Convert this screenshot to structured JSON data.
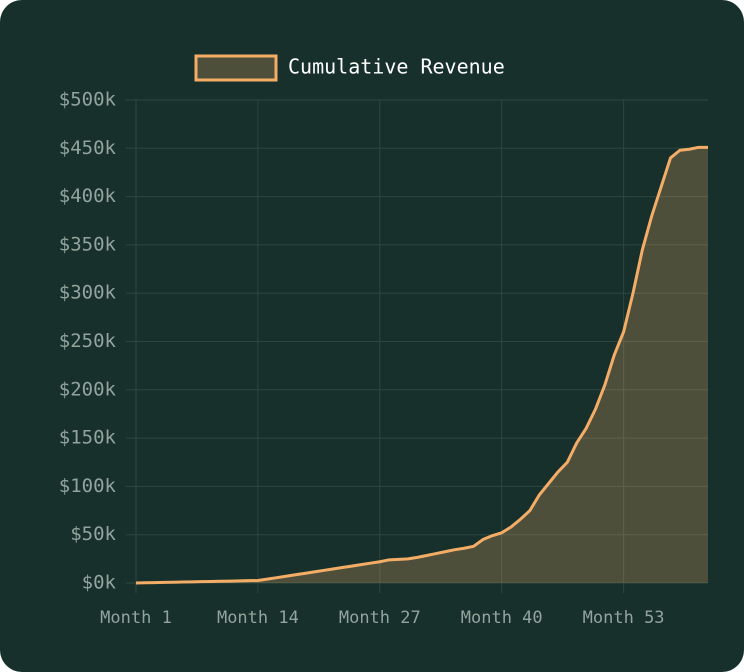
{
  "chart_data": {
    "type": "area",
    "categories": [
      "Month 1",
      null,
      null,
      null,
      null,
      null,
      null,
      null,
      null,
      null,
      null,
      null,
      null,
      "Month 14",
      null,
      null,
      null,
      null,
      null,
      null,
      null,
      null,
      null,
      null,
      null,
      null,
      "Month 27",
      null,
      null,
      null,
      null,
      null,
      null,
      null,
      null,
      null,
      null,
      null,
      null,
      "Month 40",
      null,
      null,
      null,
      null,
      null,
      null,
      null,
      null,
      null,
      null,
      null,
      null,
      "Month 53",
      null,
      null,
      null,
      null,
      null,
      null,
      null,
      null,
      null
    ],
    "series": [
      {
        "name": "Cumulative Revenue",
        "color": "#f4ad66",
        "values": [
          0,
          200,
          400,
          600,
          800,
          1000,
          1200,
          1400,
          1600,
          1800,
          2000,
          2200,
          2400,
          2600,
          4000,
          5500,
          7000,
          8500,
          10000,
          11500,
          13000,
          14500,
          16000,
          17500,
          19000,
          20500,
          22000,
          24000,
          24500,
          25000,
          26500,
          28500,
          30500,
          32500,
          34500,
          36000,
          38000,
          45000,
          49000,
          52000,
          58000,
          66000,
          75000,
          91000,
          103000,
          115000,
          125000,
          145000,
          160000,
          180000,
          205000,
          236000,
          260000,
          300000,
          345000,
          380000,
          410000,
          440000,
          448000,
          449000,
          451000,
          451000
        ]
      }
    ],
    "ylim": [
      0,
      500000
    ],
    "yticks": [
      {
        "value": 0,
        "label": "$0k"
      },
      {
        "value": 50000,
        "label": "$50k"
      },
      {
        "value": 100000,
        "label": "$100k"
      },
      {
        "value": 150000,
        "label": "$150k"
      },
      {
        "value": 200000,
        "label": "$200k"
      },
      {
        "value": 250000,
        "label": "$250k"
      },
      {
        "value": 300000,
        "label": "$300k"
      },
      {
        "value": 350000,
        "label": "$350k"
      },
      {
        "value": 400000,
        "label": "$400k"
      },
      {
        "value": 450000,
        "label": "$450k"
      },
      {
        "value": 500000,
        "label": "$500k"
      }
    ],
    "grid": true
  }
}
